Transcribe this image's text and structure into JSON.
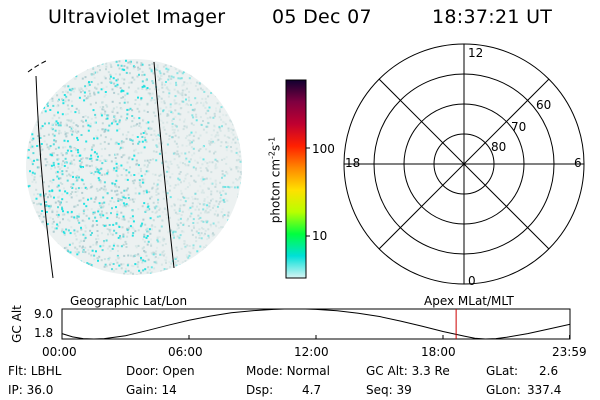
{
  "header": {
    "instrument": "Ultraviolet Imager",
    "date": "05 Dec 07",
    "time": "18:37:21 UT"
  },
  "colors": {
    "speckle": "#00e0e0",
    "haze": "#c8d8d8",
    "marker": "#cc0000"
  },
  "colorbar": {
    "unit": "photon cm",
    "unit_sup1": "-2",
    "unit_mid": "s",
    "unit_sup2": "-1",
    "ticks": [
      "10",
      "100"
    ],
    "stops": [
      "#d8f4f4",
      "#00e0d8",
      "#00ff40",
      "#b8ff00",
      "#ffe000",
      "#ff8800",
      "#ff2000",
      "#c00030",
      "#800040",
      "#100030"
    ]
  },
  "polar_plot": {
    "hour_labels": {
      "top": "12",
      "left": "18",
      "right": "6",
      "bottom": "0"
    },
    "lat_labels": [
      "60",
      "70",
      "80"
    ]
  },
  "footer_titles": {
    "left": "Geographic Lat/Lon",
    "right": "Apex MLat/MLT"
  },
  "chart_data": {
    "type": "line",
    "ylabel": "GC Alt",
    "yticks": [
      "9.0",
      "1.8"
    ],
    "ylim": [
      1.8,
      9.0
    ],
    "x_ticks": [
      "00:00",
      "06:00",
      "12:00",
      "18:00",
      "23:59"
    ],
    "current_time_hours": 18.62,
    "series": [
      {
        "x": [
          0,
          0.5,
          1,
          1.5,
          2,
          3,
          4,
          5,
          6,
          7,
          8,
          9,
          10,
          10.5,
          11,
          11.5,
          12,
          13,
          14,
          15,
          16,
          17,
          18,
          19,
          19.5,
          20,
          20.5,
          21,
          22,
          23,
          23.98
        ],
        "y": [
          3.1,
          2.3,
          1.9,
          1.8,
          1.9,
          2.6,
          3.8,
          5.1,
          6.3,
          7.3,
          8.1,
          8.6,
          8.9,
          9.0,
          9.0,
          9.0,
          8.9,
          8.6,
          8.0,
          7.2,
          6.1,
          4.9,
          3.6,
          2.5,
          2.0,
          1.8,
          1.9,
          2.2,
          3.1,
          4.2,
          5.3
        ]
      }
    ]
  },
  "status": {
    "flt_label": "Flt:",
    "flt_value": "LBHL",
    "door_label": "Door:",
    "door_value": "Open",
    "mode_label": "Mode:",
    "mode_value": "Normal",
    "gcalt_label": "GC Alt:",
    "gcalt_value": "3.3 Re",
    "glat_label": "GLat:",
    "glat_value": "2.6",
    "ip_label": "IP:",
    "ip_value": "36.0",
    "gain_label": "Gain:",
    "gain_value": "14",
    "dsp_label": "Dsp:",
    "dsp_value": "4.7",
    "seq_label": "Seq:",
    "seq_value": "39",
    "glon_label": "GLon:",
    "glon_value": "337.4"
  }
}
